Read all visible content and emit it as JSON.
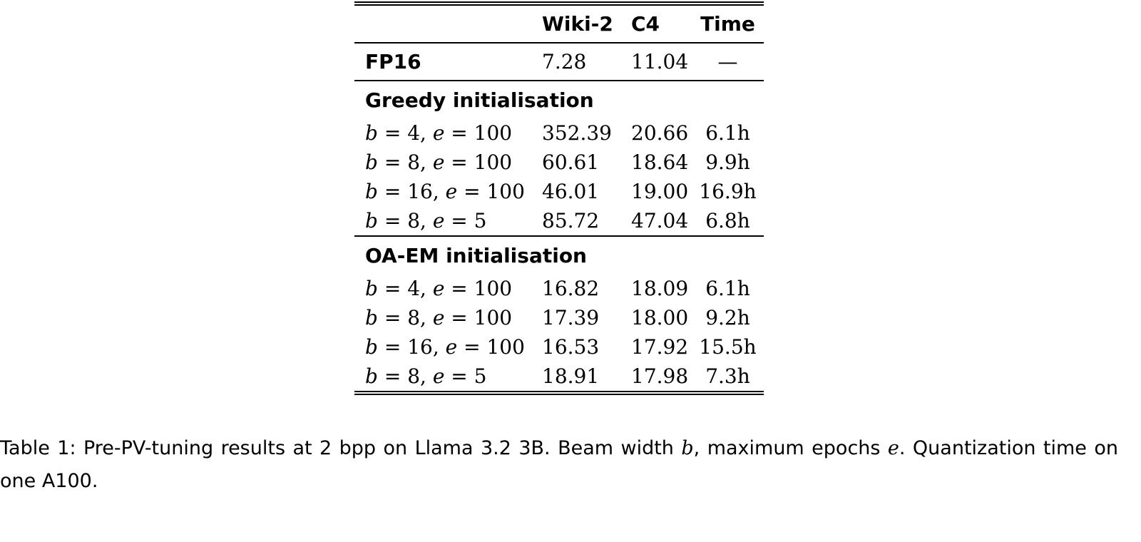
{
  "table": {
    "header": [
      "Wiki-2",
      "C4",
      "Time"
    ],
    "baseline": {
      "label": "FP16",
      "values": [
        "7.28",
        "11.04",
        "—"
      ]
    },
    "sections": [
      {
        "title": "Greedy initialisation",
        "rows": [
          {
            "label": "b = 4,  e = 100",
            "values": [
              "352.39",
              "20.66",
              "6.1h"
            ]
          },
          {
            "label": "b = 8,  e = 100",
            "values": [
              "60.61",
              "18.64",
              "9.9h"
            ]
          },
          {
            "label": "b = 16,  e = 100",
            "values": [
              "46.01",
              "19.00",
              "16.9h"
            ]
          },
          {
            "label": "b = 8,  e = 5",
            "values": [
              "85.72",
              "47.04",
              "6.8h"
            ]
          }
        ]
      },
      {
        "title": "OA-EM initialisation",
        "rows": [
          {
            "label": "b = 4,  e = 100",
            "values": [
              "16.82",
              "18.09",
              "6.1h"
            ]
          },
          {
            "label": "b = 8,  e = 100",
            "values": [
              "17.39",
              "18.00",
              "9.2h"
            ]
          },
          {
            "label": "b = 16,  e = 100",
            "values": [
              "16.53",
              "17.92",
              "15.5h"
            ]
          },
          {
            "label": "b = 8,  e = 5",
            "values": [
              "18.91",
              "17.98",
              "7.3h"
            ]
          }
        ]
      }
    ],
    "caption": "Table 1: Pre-PV-tuning results at 2 bpp on Llama 3.2 3B. Beam width b, maximum epochs e. Quantization time on one A100."
  }
}
